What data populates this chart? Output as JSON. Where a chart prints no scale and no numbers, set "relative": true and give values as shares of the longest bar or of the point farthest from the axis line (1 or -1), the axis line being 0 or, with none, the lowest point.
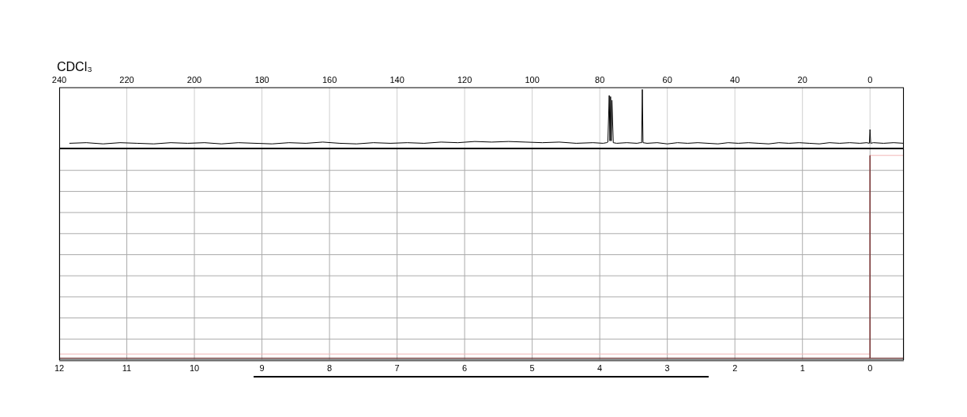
{
  "chart_data": [
    {
      "type": "line",
      "title": "CDCl₃",
      "relative": true,
      "xlim": [
        240,
        -10
      ],
      "xticks": [
        240,
        220,
        200,
        180,
        160,
        140,
        120,
        100,
        80,
        60,
        40,
        20,
        0
      ],
      "grid": "x",
      "series": [
        {
          "color": "#000000",
          "x": [
            237,
            232,
            227,
            222,
            217,
            212,
            207,
            202,
            197,
            192,
            187,
            182,
            177,
            172,
            167,
            162,
            157,
            152,
            147,
            142,
            137,
            132,
            127,
            122,
            117,
            112,
            107,
            102,
            97,
            92,
            87,
            82,
            79,
            78,
            77.6,
            77.2,
            77.0,
            76.8,
            76.6,
            76.4,
            76.0,
            75,
            72,
            69,
            68,
            67.6,
            67.4,
            67.2,
            66,
            63,
            60,
            57,
            54,
            51,
            48,
            45,
            42,
            39,
            36,
            33,
            30,
            27,
            24,
            21,
            18,
            15,
            12,
            9,
            6,
            3,
            1,
            0.2,
            0,
            -0.2,
            -1,
            -4,
            -7,
            -10
          ],
          "values": [
            0.1,
            0.11,
            0.09,
            0.11,
            0.1,
            0.09,
            0.11,
            0.1,
            0.11,
            0.09,
            0.11,
            0.1,
            0.09,
            0.11,
            0.1,
            0.12,
            0.1,
            0.09,
            0.11,
            0.1,
            0.11,
            0.1,
            0.12,
            0.11,
            0.13,
            0.12,
            0.13,
            0.12,
            0.11,
            0.12,
            0.1,
            0.11,
            0.1,
            0.11,
            0.12,
            0.9,
            0.14,
            0.88,
            0.14,
            0.82,
            0.11,
            0.1,
            0.11,
            0.1,
            0.11,
            0.11,
            1,
            0.11,
            0.1,
            0.11,
            0.09,
            0.11,
            0.1,
            0.11,
            0.1,
            0.09,
            0.11,
            0.1,
            0.11,
            0.1,
            0.09,
            0.11,
            0.1,
            0.11,
            0.1,
            0.09,
            0.11,
            0.1,
            0.11,
            0.1,
            0.11,
            0.1,
            0.33,
            0.1,
            0.11,
            0.1,
            0.11,
            0.1
          ]
        }
      ]
    },
    {
      "type": "line",
      "relative": true,
      "xlim": [
        12,
        -0.5
      ],
      "xticks": [
        12,
        11,
        10,
        9,
        8,
        7,
        6,
        5,
        4,
        3,
        2,
        1,
        0
      ],
      "grid": true,
      "series": [
        {
          "color": "#f2b6b6",
          "x": [
            12,
            0,
            0,
            -0.5
          ],
          "values": [
            0.03,
            0.03,
            1,
            1
          ]
        },
        {
          "color": "#6e2b2b",
          "x": [
            12,
            0,
            0,
            0,
            -0.5
          ],
          "values": [
            0.01,
            0.01,
            1,
            0.01,
            0.01
          ]
        }
      ]
    }
  ]
}
